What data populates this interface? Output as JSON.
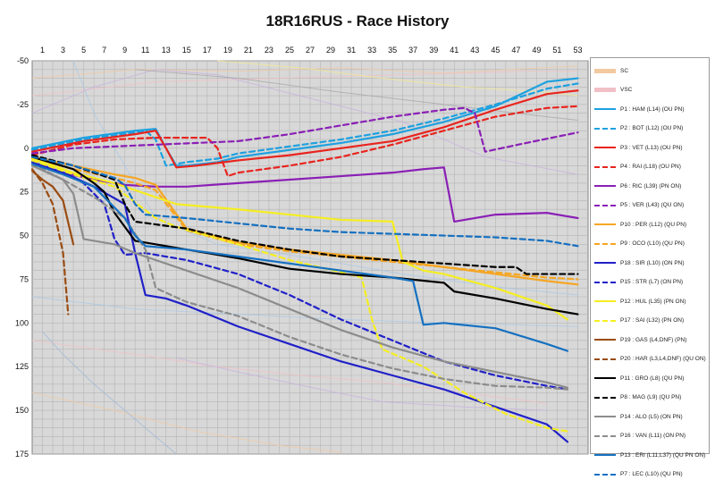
{
  "chart_data": {
    "type": "line",
    "title": "18R16RUS - Race History",
    "x_ticks": [
      1,
      3,
      5,
      7,
      9,
      11,
      13,
      15,
      17,
      19,
      21,
      23,
      25,
      27,
      29,
      31,
      33,
      35,
      37,
      39,
      41,
      43,
      45,
      47,
      49,
      51,
      53
    ],
    "y_ticks": [
      -50,
      -25,
      0,
      25,
      50,
      75,
      100,
      125,
      150,
      175
    ],
    "xlim": [
      0,
      54
    ],
    "ylim": [
      -50,
      175
    ],
    "y_inverted": true,
    "grid": true,
    "legend_position": "right",
    "annotations": [
      {
        "label": "SC",
        "color": "#f3c9a0",
        "dash": "solid"
      },
      {
        "label": "VSC",
        "color": "#f1c0c6",
        "dash": "solid"
      }
    ],
    "series": [
      {
        "name": "P1 : HAM (L14) (OU PN)",
        "color": "#1da1e0",
        "dash": "solid",
        "x": [
          0,
          5,
          10,
          12,
          13,
          14,
          15,
          18,
          20,
          25,
          30,
          35,
          40,
          45,
          50,
          53
        ],
        "y": [
          0,
          -6,
          -10,
          -11,
          0,
          10,
          10,
          8,
          5,
          1,
          -3,
          -8,
          -15,
          -24,
          -38,
          -40
        ]
      },
      {
        "name": "P2 : BOT (L12) (OU PN)",
        "color": "#1da1e0",
        "dash": "dashed",
        "x": [
          0,
          5,
          10,
          11,
          12,
          13,
          15,
          18,
          20,
          25,
          30,
          35,
          40,
          45,
          50,
          53
        ],
        "y": [
          1,
          -5,
          -9,
          -10,
          -5,
          10,
          8,
          6,
          3,
          -1,
          -5,
          -10,
          -17,
          -25,
          -34,
          -37
        ]
      },
      {
        "name": "P3 : VET (L13) (OU PN)",
        "color": "#e8241e",
        "dash": "solid",
        "x": [
          0,
          5,
          10,
          12,
          13,
          14,
          16,
          20,
          25,
          30,
          35,
          40,
          45,
          50,
          53
        ],
        "y": [
          2,
          -4,
          -8,
          -10,
          0,
          11,
          10,
          7,
          4,
          0,
          -4,
          -12,
          -22,
          -31,
          -33
        ]
      },
      {
        "name": "P4 : RAI (L18) (OU PN)",
        "color": "#e8241e",
        "dash": "dashed",
        "x": [
          0,
          4,
          8,
          12,
          15,
          17,
          18,
          19,
          20,
          25,
          30,
          35,
          40,
          45,
          50,
          53
        ],
        "y": [
          4,
          -2,
          -5,
          -6,
          -6,
          -6,
          0,
          16,
          14,
          10,
          5,
          -2,
          -10,
          -18,
          -23,
          -24
        ]
      },
      {
        "name": "P6 : RIC (L39) (PN ON)",
        "color": "#8a1fb5",
        "dash": "solid",
        "x": [
          0,
          3,
          6,
          9,
          12,
          15,
          20,
          25,
          30,
          35,
          38,
          40,
          41,
          45,
          50,
          53
        ],
        "y": [
          8,
          14,
          18,
          21,
          22,
          22,
          20,
          18,
          16,
          14,
          12,
          11,
          42,
          38,
          37,
          40
        ]
      },
      {
        "name": "P5 : VER (L43) (QU ON)",
        "color": "#8a1fb5",
        "dash": "dashed",
        "x": [
          0,
          4,
          8,
          12,
          16,
          20,
          25,
          30,
          35,
          40,
          42,
          43,
          44,
          48,
          53
        ],
        "y": [
          3,
          0,
          -1,
          -2,
          -3,
          -4,
          -8,
          -13,
          -18,
          -22,
          -23,
          -20,
          2,
          -3,
          -9
        ]
      },
      {
        "name": "P10 : PER (L12) (QU PN)",
        "color": "#f5a623",
        "dash": "solid",
        "x": [
          0,
          4,
          8,
          10,
          11,
          12,
          15,
          20,
          25,
          30,
          35,
          40,
          45,
          50,
          53
        ],
        "y": [
          5,
          10,
          15,
          17,
          19,
          21,
          46,
          54,
          58,
          61,
          64,
          68,
          72,
          76,
          78
        ]
      },
      {
        "name": "P9 : OCO (L10) (QU PN)",
        "color": "#f5a623",
        "dash": "dashed",
        "x": [
          0,
          4,
          8,
          10,
          11,
          12,
          15,
          20,
          25,
          30,
          35,
          40,
          45,
          50,
          53
        ],
        "y": [
          6,
          12,
          17,
          20,
          22,
          24,
          47,
          55,
          59,
          62,
          65,
          68,
          71,
          74,
          75
        ]
      },
      {
        "name": "P18 : SIR (L10) (ON PN)",
        "color": "#2020c8",
        "dash": "solid",
        "x": [
          0,
          3,
          6,
          9,
          10,
          11,
          13,
          15,
          20,
          25,
          30,
          35,
          40,
          45,
          50,
          52
        ],
        "y": [
          8,
          14,
          22,
          32,
          60,
          84,
          86,
          90,
          102,
          112,
          122,
          130,
          138,
          148,
          158,
          168
        ]
      },
      {
        "name": "P15 : STR (L7) (ON PN)",
        "color": "#2020c8",
        "dash": "dashed",
        "x": [
          0,
          3,
          5,
          7,
          8,
          9,
          11,
          15,
          20,
          25,
          30,
          35,
          40,
          45,
          50,
          52
        ],
        "y": [
          7,
          13,
          20,
          32,
          52,
          61,
          60,
          64,
          72,
          84,
          98,
          110,
          122,
          130,
          136,
          138
        ]
      },
      {
        "name": "P12 : HUL (L35) (PN ON)",
        "color": "#f5ee20",
        "dash": "solid",
        "x": [
          0,
          4,
          8,
          12,
          14,
          20,
          25,
          30,
          35,
          36,
          38,
          40,
          45,
          50,
          52
        ],
        "y": [
          6,
          14,
          20,
          28,
          32,
          35,
          38,
          41,
          42,
          65,
          70,
          72,
          80,
          90,
          98
        ]
      },
      {
        "name": "P17 : SAI (L32) (PN ON)",
        "color": "#f5ee20",
        "dash": "dashed",
        "x": [
          0,
          4,
          8,
          12,
          14,
          20,
          25,
          30,
          32,
          33,
          34,
          38,
          42,
          46,
          50,
          52
        ],
        "y": [
          7,
          15,
          22,
          40,
          45,
          55,
          64,
          71,
          74,
          98,
          115,
          125,
          140,
          152,
          160,
          162
        ]
      },
      {
        "name": "P19 : GAS (L4,DNF) (PN)",
        "color": "#9a4c12",
        "dash": "solid",
        "x": [
          0,
          1,
          2,
          3,
          4
        ],
        "y": [
          13,
          18,
          22,
          30,
          55
        ]
      },
      {
        "name": "P20 : HAR (L3,L4,DNF) (QU ON)",
        "color": "#9a4c12",
        "dash": "dashed",
        "x": [
          0,
          1,
          2,
          3,
          3.5
        ],
        "y": [
          12,
          20,
          32,
          60,
          95
        ]
      },
      {
        "name": "P11 : GRO (L8) (QU PN)",
        "color": "#000000",
        "dash": "solid",
        "x": [
          0,
          4,
          6,
          7,
          8,
          10,
          15,
          20,
          25,
          30,
          35,
          40,
          41,
          45,
          50,
          53
        ],
        "y": [
          5,
          12,
          20,
          25,
          37,
          53,
          58,
          63,
          69,
          72,
          74,
          77,
          82,
          86,
          92,
          95
        ]
      },
      {
        "name": "P8 : MAG (L9) (QU PN)",
        "color": "#000000",
        "dash": "dashed",
        "x": [
          0,
          4,
          8,
          9,
          10,
          15,
          20,
          25,
          30,
          35,
          40,
          45,
          47,
          48,
          50,
          53
        ],
        "y": [
          4,
          10,
          18,
          32,
          42,
          46,
          53,
          58,
          62,
          64,
          66,
          68,
          68,
          72,
          72,
          72
        ]
      },
      {
        "name": "P14 : ALO (L5) (ON PN)",
        "color": "#8c8c8c",
        "dash": "solid",
        "x": [
          0,
          3,
          4,
          5,
          8,
          10,
          15,
          20,
          25,
          30,
          35,
          40,
          45,
          50,
          52
        ],
        "y": [
          10,
          18,
          26,
          52,
          55,
          60,
          70,
          80,
          92,
          104,
          114,
          122,
          128,
          134,
          137
        ]
      },
      {
        "name": "P16 : VAN (L11) (ON PN)",
        "color": "#8c8c8c",
        "dash": "dashed",
        "x": [
          0,
          3,
          6,
          9,
          11,
          12,
          15,
          20,
          25,
          30,
          35,
          40,
          45,
          50,
          52
        ],
        "y": [
          9,
          18,
          28,
          40,
          58,
          80,
          88,
          96,
          108,
          118,
          126,
          132,
          136,
          137,
          138
        ]
      },
      {
        "name": "P13 : ERI (L11,L37) (QU PN ON)",
        "color": "#1570c0",
        "dash": "solid",
        "x": [
          0,
          3,
          6,
          9,
          10,
          11,
          15,
          20,
          25,
          30,
          35,
          37,
          38,
          40,
          45,
          50,
          52
        ],
        "y": [
          9,
          15,
          22,
          40,
          50,
          56,
          58,
          62,
          66,
          70,
          74,
          76,
          101,
          100,
          103,
          112,
          116
        ]
      },
      {
        "name": "P7 : LEC (L10) (QU PN)",
        "color": "#1570c0",
        "dash": "dashed",
        "x": [
          0,
          4,
          8,
          9,
          10,
          11,
          15,
          20,
          25,
          30,
          35,
          40,
          45,
          50,
          53
        ],
        "y": [
          5,
          10,
          17,
          21,
          32,
          38,
          40,
          43,
          46,
          48,
          49,
          50,
          51,
          53,
          56
        ]
      }
    ]
  }
}
